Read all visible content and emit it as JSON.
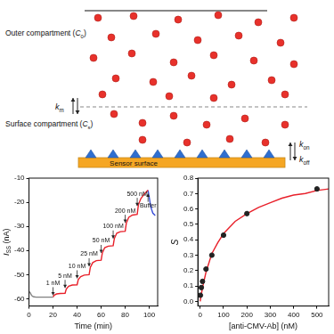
{
  "diagram": {
    "outer": {
      "pre": "Outer compartment (",
      "symbol": "C",
      "sub": "0",
      "post": ")"
    },
    "surface": {
      "pre": "Surface compartment (",
      "symbol": "C",
      "sub": "s",
      "post": ")"
    },
    "km": {
      "symbol": "k",
      "sub": "m"
    },
    "kon": {
      "symbol": "k",
      "sub": "on"
    },
    "koff": {
      "symbol": "k",
      "sub": "off"
    },
    "sensor": "Sensor surface"
  },
  "chart_data": [
    {
      "type": "line",
      "x_label": "Time (min)",
      "y_label": {
        "symbol": "I",
        "sub": "SS",
        "post": " (nA)"
      },
      "xlim": [
        0,
        107
      ],
      "xticks": [
        0,
        20,
        40,
        60,
        80,
        100
      ],
      "ylim": [
        -63,
        -10
      ],
      "yticks": [
        -60,
        -50,
        -40,
        -30,
        -20,
        -10
      ],
      "grid": false,
      "series": [
        {
          "color": "#808080",
          "x": [
            0,
            1,
            2,
            3,
            4,
            6,
            10,
            15,
            20
          ],
          "values": [
            -57,
            -57.5,
            -58.5,
            -59,
            -59.2,
            -59.3,
            -59.3,
            -59.3,
            -59.3
          ]
        },
        {
          "color": "#e8202a",
          "x": [
            20,
            21,
            23,
            26,
            30,
            31,
            33,
            36,
            40,
            41,
            43,
            46,
            50,
            51,
            53,
            56,
            60,
            61,
            63,
            66,
            70,
            71,
            73,
            76,
            80,
            81,
            83,
            86,
            90,
            91,
            93,
            96,
            99
          ],
          "values": [
            -59.3,
            -58.5,
            -58,
            -57.8,
            -57.7,
            -56,
            -54.8,
            -54.3,
            -54.2,
            -52,
            -50.8,
            -50.2,
            -50,
            -47,
            -45,
            -44.2,
            -44,
            -41,
            -38.8,
            -38.2,
            -38,
            -35,
            -32.8,
            -32.2,
            -32,
            -28.5,
            -26.2,
            -25.3,
            -25,
            -21,
            -18.5,
            -16.5,
            -15
          ]
        },
        {
          "color": "#3a4fd8",
          "x": [
            99,
            100,
            101,
            102,
            103,
            105
          ],
          "values": [
            -15,
            -18,
            -21,
            -23,
            -24.5,
            -25.5
          ]
        }
      ],
      "annotations": [
        {
          "text": "1 nM",
          "x": 20,
          "y": -58.5,
          "arrow": "down"
        },
        {
          "text": "5 nM",
          "x": 30,
          "y": -55.5,
          "arrow": "down"
        },
        {
          "text": "10 nM",
          "x": 40,
          "y": -51.5,
          "arrow": "down"
        },
        {
          "text": "25 nM",
          "x": 50,
          "y": -46.5,
          "arrow": "down"
        },
        {
          "text": "50 nM",
          "x": 60,
          "y": -41,
          "arrow": "down"
        },
        {
          "text": "100 nM",
          "x": 70,
          "y": -35,
          "arrow": "down"
        },
        {
          "text": "200 nM",
          "x": 80,
          "y": -28.5,
          "arrow": "down"
        },
        {
          "text": "500 nM",
          "x": 90,
          "y": -21.5,
          "arrow": "down"
        },
        {
          "text": "Buffer",
          "x": 99,
          "y": -16.5,
          "arrow": "up"
        }
      ]
    },
    {
      "type": "scatter",
      "x_label": "[anti-CMV-Ab] (nM)",
      "y_label": "S",
      "xlim": [
        -10,
        550
      ],
      "xticks": [
        0,
        100,
        200,
        300,
        400,
        500
      ],
      "ylim": [
        -0.03,
        0.8
      ],
      "yticks": [
        {
          "value": 0,
          "label": "0.0"
        },
        0.1,
        0.2,
        0.3,
        0.4,
        0.5,
        0.6,
        0.7,
        0.8
      ],
      "grid": false,
      "series": [
        {
          "type": "line",
          "color": "#e8202a",
          "x": [
            0,
            10,
            25,
            50,
            75,
            100,
            150,
            200,
            250,
            300,
            350,
            400,
            450,
            500,
            550
          ],
          "values": [
            0,
            0.09,
            0.19,
            0.31,
            0.38,
            0.44,
            0.52,
            0.57,
            0.61,
            0.64,
            0.67,
            0.69,
            0.7,
            0.72,
            0.73
          ]
        },
        {
          "type": "scatter",
          "color": "#222222",
          "marker": "circle",
          "x": [
            1,
            5,
            10,
            25,
            50,
            100,
            200,
            500
          ],
          "values": [
            0.04,
            0.09,
            0.13,
            0.21,
            0.3,
            0.43,
            0.57,
            0.73
          ]
        }
      ]
    }
  ]
}
